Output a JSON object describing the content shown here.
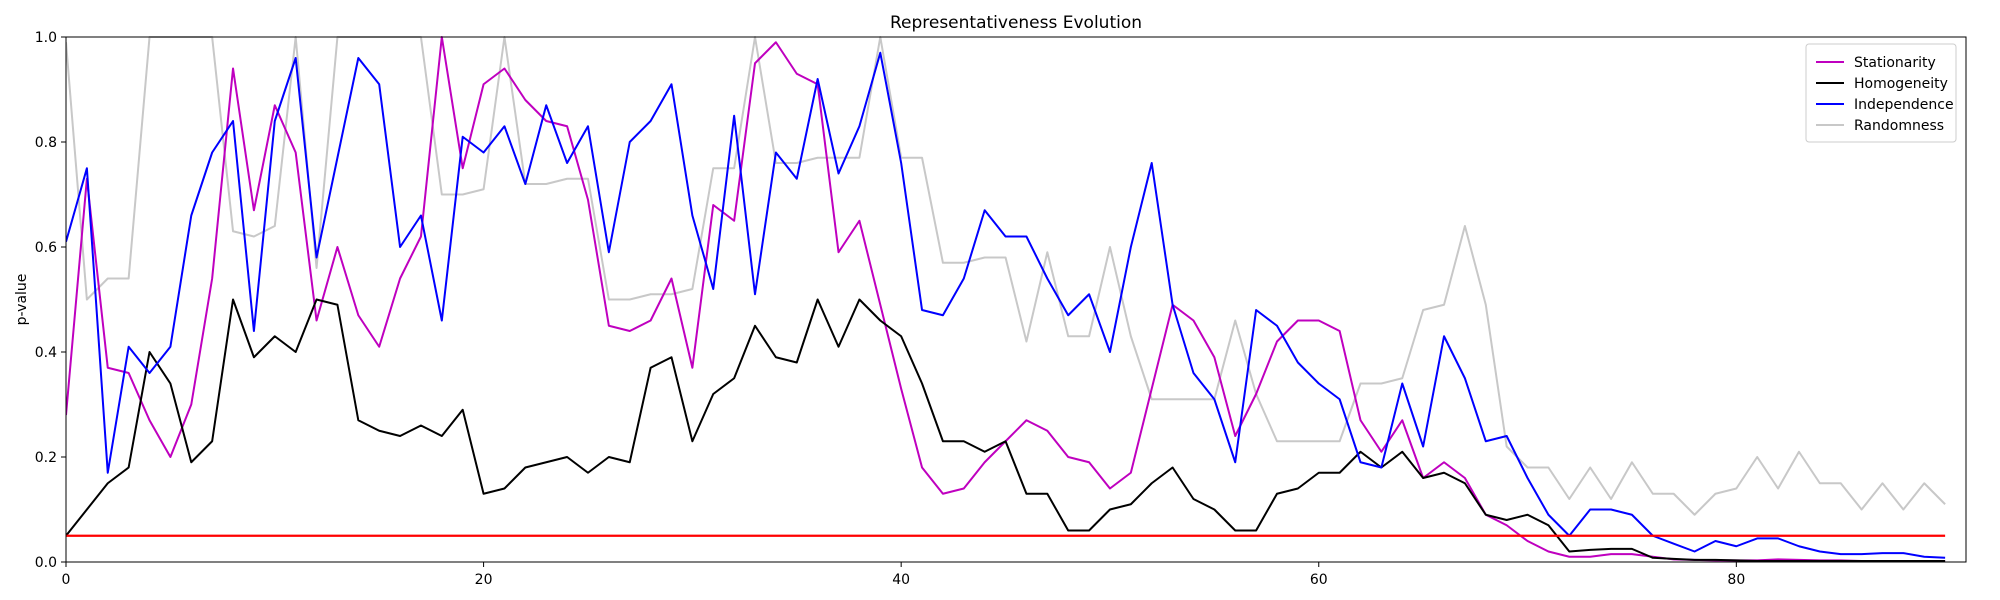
{
  "chart_data": {
    "type": "line",
    "title": "Representativeness Evolution",
    "xlabel": "",
    "ylabel": "p-value",
    "xlim": [
      0,
      91
    ],
    "ylim": [
      0,
      1.0
    ],
    "xticks": [
      0,
      20,
      40,
      60,
      80
    ],
    "yticks": [
      0.0,
      0.2,
      0.4,
      0.6,
      0.8,
      1.0
    ],
    "xtick_labels": [
      "0",
      "20",
      "40",
      "60",
      "80"
    ],
    "ytick_labels": [
      "0.0",
      "0.2",
      "0.4",
      "0.6",
      "0.8",
      "1.0"
    ],
    "grid": false,
    "legend_position": "top-right",
    "x": [
      0,
      1,
      2,
      3,
      4,
      5,
      6,
      7,
      8,
      9,
      10,
      11,
      12,
      13,
      14,
      15,
      16,
      17,
      18,
      19,
      20,
      21,
      22,
      23,
      24,
      25,
      26,
      27,
      28,
      29,
      30,
      31,
      32,
      33,
      34,
      35,
      36,
      37,
      38,
      39,
      40,
      41,
      42,
      43,
      44,
      45,
      46,
      47,
      48,
      49,
      50,
      51,
      52,
      53,
      54,
      55,
      56,
      57,
      58,
      59,
      60,
      61,
      62,
      63,
      64,
      65,
      66,
      67,
      68,
      69,
      70,
      71,
      72,
      73,
      74,
      75,
      76,
      77,
      78,
      79,
      80,
      81,
      82,
      83,
      84,
      85,
      86,
      87,
      88,
      89,
      90
    ],
    "series": [
      {
        "name": "Stationarity",
        "color": "#bf00bf",
        "values": [
          0.28,
          0.73,
          0.37,
          0.36,
          0.27,
          0.2,
          0.3,
          0.54,
          0.94,
          0.67,
          0.87,
          0.78,
          0.46,
          0.6,
          0.47,
          0.41,
          0.54,
          0.62,
          1.0,
          0.75,
          0.91,
          0.94,
          0.88,
          0.84,
          0.83,
          0.69,
          0.45,
          0.44,
          0.46,
          0.54,
          0.37,
          0.68,
          0.65,
          0.95,
          0.99,
          0.93,
          0.91,
          0.59,
          0.65,
          0.49,
          0.33,
          0.18,
          0.13,
          0.14,
          0.19,
          0.23,
          0.27,
          0.25,
          0.2,
          0.19,
          0.14,
          0.17,
          0.33,
          0.49,
          0.46,
          0.39,
          0.24,
          0.32,
          0.42,
          0.46,
          0.46,
          0.44,
          0.27,
          0.21,
          0.27,
          0.16,
          0.19,
          0.16,
          0.09,
          0.07,
          0.04,
          0.02,
          0.01,
          0.01,
          0.015,
          0.015,
          0.01,
          0.005,
          0.004,
          0.003,
          0.003,
          0.003,
          0.005,
          0.004,
          0.003,
          0.003,
          0.002,
          0.002,
          0.002,
          0.002,
          0.002
        ]
      },
      {
        "name": "Homogeneity",
        "color": "#000000",
        "values": [
          0.05,
          0.1,
          0.15,
          0.18,
          0.4,
          0.34,
          0.19,
          0.23,
          0.5,
          0.39,
          0.43,
          0.4,
          0.5,
          0.49,
          0.27,
          0.25,
          0.24,
          0.26,
          0.24,
          0.29,
          0.13,
          0.14,
          0.18,
          0.19,
          0.2,
          0.17,
          0.2,
          0.19,
          0.37,
          0.39,
          0.23,
          0.32,
          0.35,
          0.45,
          0.39,
          0.38,
          0.5,
          0.41,
          0.5,
          0.46,
          0.43,
          0.34,
          0.23,
          0.23,
          0.21,
          0.23,
          0.13,
          0.13,
          0.06,
          0.06,
          0.1,
          0.11,
          0.15,
          0.18,
          0.12,
          0.1,
          0.06,
          0.06,
          0.13,
          0.14,
          0.17,
          0.17,
          0.21,
          0.18,
          0.21,
          0.16,
          0.17,
          0.15,
          0.09,
          0.08,
          0.09,
          0.07,
          0.02,
          0.023,
          0.025,
          0.025,
          0.008,
          0.006,
          0.004,
          0.004,
          0.003,
          0.002,
          0.002,
          0.002,
          0.002,
          0.002,
          0.002,
          0.002,
          0.002,
          0.002,
          0.002
        ]
      },
      {
        "name": "Independence",
        "color": "#0000ff",
        "values": [
          0.61,
          0.75,
          0.17,
          0.41,
          0.36,
          0.41,
          0.66,
          0.78,
          0.84,
          0.44,
          0.84,
          0.96,
          0.58,
          0.77,
          0.96,
          0.91,
          0.6,
          0.66,
          0.46,
          0.81,
          0.78,
          0.83,
          0.72,
          0.87,
          0.76,
          0.83,
          0.59,
          0.8,
          0.84,
          0.91,
          0.66,
          0.52,
          0.85,
          0.51,
          0.78,
          0.73,
          0.92,
          0.74,
          0.83,
          0.97,
          0.76,
          0.48,
          0.47,
          0.54,
          0.67,
          0.62,
          0.62,
          0.54,
          0.47,
          0.51,
          0.4,
          0.6,
          0.76,
          0.49,
          0.36,
          0.31,
          0.19,
          0.48,
          0.45,
          0.38,
          0.34,
          0.31,
          0.19,
          0.18,
          0.34,
          0.22,
          0.43,
          0.35,
          0.23,
          0.24,
          0.16,
          0.09,
          0.05,
          0.1,
          0.1,
          0.09,
          0.05,
          0.035,
          0.02,
          0.04,
          0.03,
          0.045,
          0.045,
          0.03,
          0.02,
          0.015,
          0.015,
          0.017,
          0.017,
          0.01,
          0.008
        ]
      },
      {
        "name": "Randomness",
        "color": "#c8c8c8",
        "values": [
          0.99,
          0.5,
          0.54,
          0.54,
          1.0,
          1.0,
          1.0,
          1.0,
          0.63,
          0.62,
          0.64,
          1.0,
          0.56,
          1.0,
          1.0,
          1.0,
          1.0,
          1.0,
          0.7,
          0.7,
          0.71,
          1.0,
          0.72,
          0.72,
          0.73,
          0.73,
          0.5,
          0.5,
          0.51,
          0.51,
          0.52,
          0.75,
          0.75,
          1.0,
          0.76,
          0.76,
          0.77,
          0.77,
          0.77,
          1.0,
          0.77,
          0.77,
          0.57,
          0.57,
          0.58,
          0.58,
          0.42,
          0.59,
          0.43,
          0.43,
          0.6,
          0.43,
          0.31,
          0.31,
          0.31,
          0.31,
          0.46,
          0.32,
          0.23,
          0.23,
          0.23,
          0.23,
          0.34,
          0.34,
          0.35,
          0.48,
          0.49,
          0.64,
          0.49,
          0.22,
          0.18,
          0.18,
          0.12,
          0.18,
          0.12,
          0.19,
          0.13,
          0.13,
          0.09,
          0.13,
          0.14,
          0.2,
          0.14,
          0.21,
          0.15,
          0.15,
          0.1,
          0.15,
          0.1,
          0.15,
          0.11
        ]
      }
    ],
    "reference_line": {
      "y": 0.05,
      "color": "#ff0000"
    }
  }
}
